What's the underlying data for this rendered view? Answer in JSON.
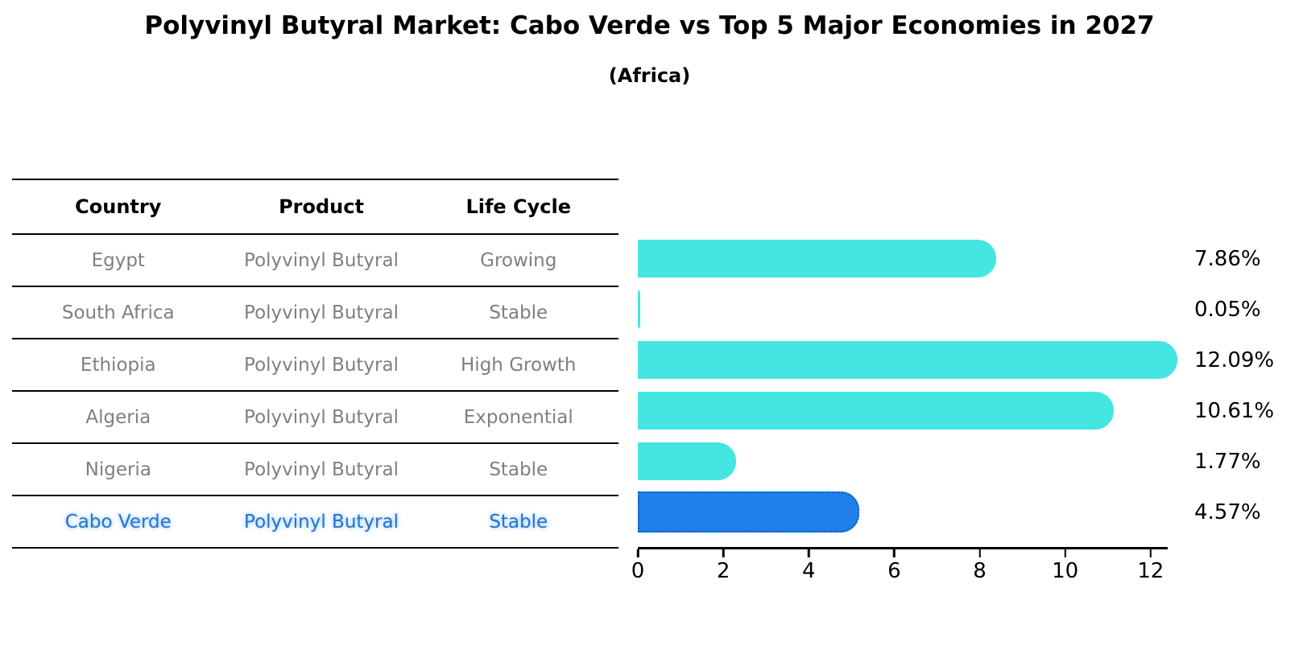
{
  "title": "Polyvinyl Butyral Market: Cabo Verde vs Top 5 Major Economies in 2027",
  "subtitle": "(Africa)",
  "table": {
    "headers": {
      "country": "Country",
      "product": "Product",
      "life_cycle": "Life Cycle"
    },
    "rows": [
      {
        "country": "Egypt",
        "product": "Polyvinyl Butyral",
        "life_cycle": "Growing"
      },
      {
        "country": "South Africa",
        "product": "Polyvinyl Butyral",
        "life_cycle": "Stable"
      },
      {
        "country": "Ethiopia",
        "product": "Polyvinyl Butyral",
        "life_cycle": "High Growth"
      },
      {
        "country": "Algeria",
        "product": "Polyvinyl Butyral",
        "life_cycle": "Exponential"
      },
      {
        "country": "Nigeria",
        "product": "Polyvinyl Butyral",
        "life_cycle": "Stable"
      },
      {
        "country": "Cabo Verde",
        "product": "Polyvinyl Butyral",
        "life_cycle": "Stable"
      }
    ],
    "highlighted_country": "Cabo Verde"
  },
  "chart_data": {
    "type": "bar",
    "orientation": "horizontal",
    "categories": [
      "Egypt",
      "South Africa",
      "Ethiopia",
      "Algeria",
      "Nigeria",
      "Cabo Verde"
    ],
    "values": [
      7.86,
      0.05,
      12.09,
      10.61,
      1.77,
      4.57
    ],
    "value_labels": [
      "7.86%",
      "0.05%",
      "12.09%",
      "10.61%",
      "1.77%",
      "4.57%"
    ],
    "xticks": [
      0,
      2,
      4,
      6,
      8,
      10,
      12
    ],
    "xlim": [
      0,
      12.4
    ],
    "grid": false,
    "legend": "none",
    "bar_color": "#45e6e1",
    "highlight_bar_color": "#1e80e8",
    "highlight_index": 5,
    "highlight_style": "dotted-outline",
    "title": "Polyvinyl Butyral Market: Cabo Verde vs Top 5 Major Economies in 2027",
    "subtitle": "(Africa)",
    "xlabel": "",
    "ylabel": ""
  },
  "colors": {
    "background": "#ffffff",
    "title_text": "#000000",
    "table_text": "#7f7f7f",
    "highlight_text": "#2474cc",
    "axis": "#000000"
  }
}
